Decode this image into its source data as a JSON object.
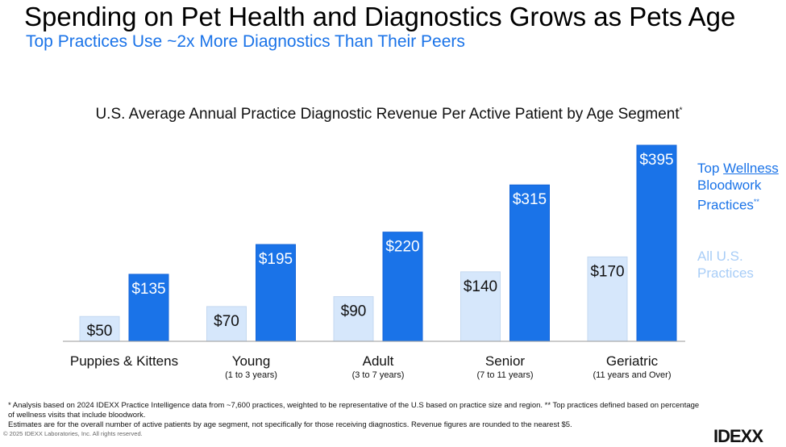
{
  "header": {
    "title": "Spending on Pet Health and Diagnostics Grows as Pets Age",
    "subtitle": "Top Practices Use ~2x More Diagnostics Than Their Peers"
  },
  "chart_data": {
    "type": "bar",
    "title": "U.S. Average Annual Practice Diagnostic Revenue Per Active Patient by Age Segment",
    "title_mark": "*",
    "categories": [
      "Puppies & Kittens",
      "Young",
      "Adult",
      "Senior",
      "Geriatric"
    ],
    "category_sublabels": [
      "",
      "(1 to 3 years)",
      "(3 to 7 years)",
      "(7 to 11 years)",
      "(11 years and Over)"
    ],
    "series": [
      {
        "name": "All U.S. Practices",
        "color": "#d6e7fb",
        "labels": [
          "$50",
          "$70",
          "$90",
          "$140",
          "$170"
        ],
        "values": [
          50,
          70,
          90,
          140,
          170
        ]
      },
      {
        "name": "Top Wellness Bloodwork Practices",
        "color": "#1a73e8",
        "labels": [
          "$135",
          "$195",
          "$220",
          "$315",
          "$395"
        ],
        "values": [
          135,
          195,
          220,
          315,
          395
        ]
      }
    ],
    "ylim": [
      0,
      400
    ],
    "legend": {
      "placement": "right",
      "top_pre": "Top ",
      "top_link": "Wellness",
      "top_line2": "Bloodwork",
      "top_line3": "Practices",
      "top_mark": "**",
      "all_line1": "All U.S.",
      "all_line2": "Practices"
    }
  },
  "footer": {
    "note1": "* Analysis based on 2024 IDEXX Practice Intelligence data from ~7,600 practices, weighted to be representative of the U.S based on practice size and region.  ** Top practices defined based on percentage",
    "note2": "of wellness visits that include bloodwork.",
    "note3": "Estimates are for the overall number of active patients by age segment, not specifically for those receiving diagnostics. Revenue figures are rounded to the nearest $5.",
    "copyright": "© 2025 IDEXX Laboratories, Inc. All rights reserved.",
    "logo": "IDEXX"
  }
}
